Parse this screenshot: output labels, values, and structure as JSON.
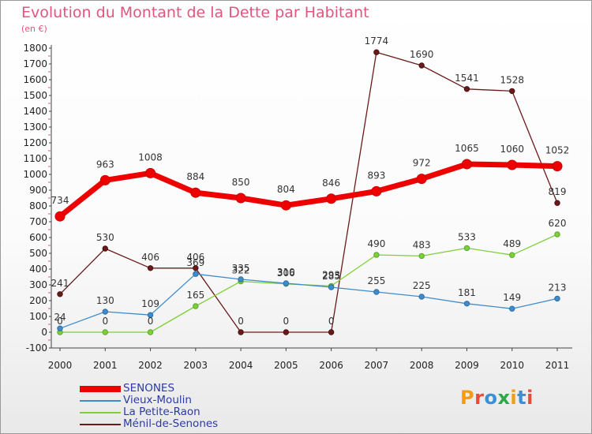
{
  "header": {
    "title": "Evolution du Montant de la Dette par Habitant",
    "subtitle": "(en €)"
  },
  "logo": {
    "text": "Proxiti",
    "colors": [
      "#f39c12",
      "#e84b3c",
      "#3a8fd6",
      "#2aa84a",
      "#f39c12",
      "#3a8fd6",
      "#e84b3c"
    ]
  },
  "chart_data": {
    "type": "line",
    "title": "Evolution du Montant de la Dette par Habitant",
    "subtitle": "(en €)",
    "xlabel": "",
    "ylabel": "",
    "categories": [
      "2000",
      "2001",
      "2002",
      "2003",
      "2004",
      "2005",
      "2006",
      "2007",
      "2008",
      "2009",
      "2010",
      "2011"
    ],
    "ylim": [
      -100,
      1800
    ],
    "yticks": [
      -100,
      0,
      100,
      200,
      300,
      400,
      500,
      600,
      700,
      800,
      900,
      1000,
      1100,
      1200,
      1300,
      1400,
      1500,
      1600,
      1700,
      1800
    ],
    "grid": false,
    "legend_position": "bottom-left",
    "series": [
      {
        "name": "SENONES",
        "color": "#ee0000",
        "values": [
          734,
          963,
          1008,
          884,
          850,
          804,
          846,
          893,
          972,
          1065,
          1060,
          1052
        ]
      },
      {
        "name": "Vieux-Moulin",
        "color": "#3f8ccc",
        "values": [
          24,
          130,
          109,
          369,
          335,
          310,
          285,
          255,
          225,
          181,
          149,
          213
        ]
      },
      {
        "name": "La Petite-Raon",
        "color": "#7fcf3a",
        "values": [
          0,
          0,
          0,
          165,
          322,
          306,
          293,
          490,
          483,
          533,
          489,
          620
        ]
      },
      {
        "name": "Ménil-de-Senones",
        "color": "#6b1a1a",
        "values": [
          241,
          530,
          406,
          406,
          0,
          0,
          0,
          1774,
          1690,
          1541,
          1528,
          819
        ]
      }
    ]
  }
}
